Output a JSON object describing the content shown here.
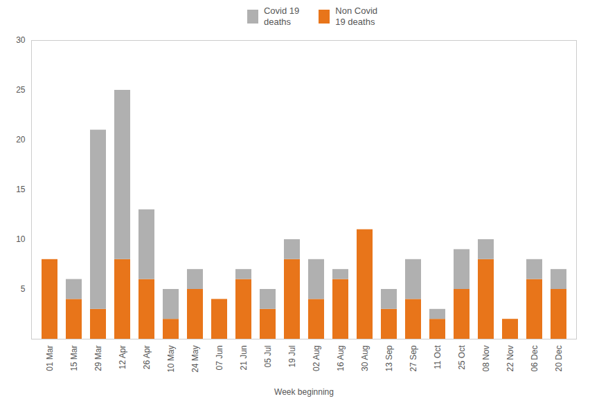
{
  "chart_data": {
    "type": "bar",
    "stacked": true,
    "categories": [
      "01 Mar",
      "15 Mar",
      "29 Mar",
      "12 Apr",
      "26 Apr",
      "10 May",
      "24 May",
      "07 Jun",
      "21 Jun",
      "05 Jul",
      "19 Jul",
      "02 Aug",
      "16 Aug",
      "30 Aug",
      "13 Sep",
      "27 Sep",
      "11 Oct",
      "25 Oct",
      "08 Nov",
      "22 Nov",
      "06 Dec",
      "20 Dec"
    ],
    "series": [
      {
        "name": "Non Covid\n19 deaths",
        "color": "#e8751a",
        "values": [
          8,
          4,
          3,
          8,
          6,
          2,
          5,
          4,
          6,
          3,
          8,
          4,
          6,
          11,
          3,
          4,
          2,
          5,
          8,
          2,
          6,
          5
        ]
      },
      {
        "name": "Covid 19\ndeaths",
        "color": "#b0b0b0",
        "values": [
          0,
          2,
          18,
          17,
          7,
          3,
          2,
          0,
          1,
          2,
          2,
          4,
          1,
          0,
          2,
          4,
          1,
          4,
          2,
          0,
          2,
          2
        ]
      }
    ],
    "xlabel": "Week beginning",
    "ylim": [
      0,
      30
    ],
    "yticks": [
      5,
      10,
      15,
      20,
      25,
      30
    ],
    "grid": false,
    "legend": "upper center"
  }
}
